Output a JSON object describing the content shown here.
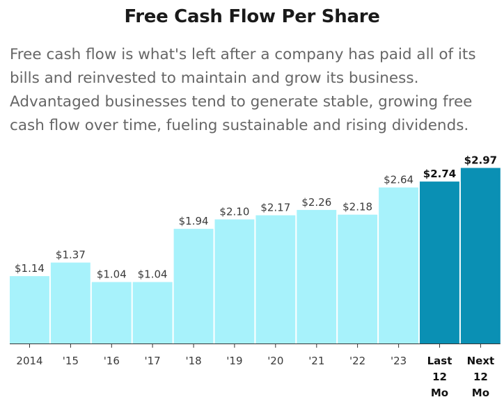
{
  "title": "Free Cash Flow Per Share",
  "subtitle": "Free cash flow is what's left after a company has paid all of its bills and reinvested to maintain and grow its business. Advantaged businesses tend to generate stable, growing free cash flow over time, fueling sustainable and rising dividends.",
  "colors": {
    "bar_normal": "#a7f2fb",
    "bar_highlight": "#0a90b4",
    "axis": "#333333"
  },
  "chart_data": {
    "type": "bar",
    "categories": [
      "2014",
      "'15",
      "'16",
      "'17",
      "'18",
      "'19",
      "'20",
      "'21",
      "'22",
      "'23",
      "Last 12 Mo",
      "Next 12 Mo"
    ],
    "values": [
      1.14,
      1.37,
      1.04,
      1.04,
      1.94,
      2.1,
      2.17,
      2.26,
      2.18,
      2.64,
      2.74,
      2.97
    ],
    "value_labels": [
      "$1.14",
      "$1.37",
      "$1.04",
      "$1.04",
      "$1.94",
      "$2.10",
      "$2.17",
      "$2.26",
      "$2.18",
      "$2.64",
      "$2.74",
      "$2.97"
    ],
    "highlighted": [
      false,
      false,
      false,
      false,
      false,
      false,
      false,
      false,
      false,
      false,
      true,
      true
    ],
    "ylim": [
      0,
      3.0
    ],
    "grid": false,
    "legend": "none"
  }
}
